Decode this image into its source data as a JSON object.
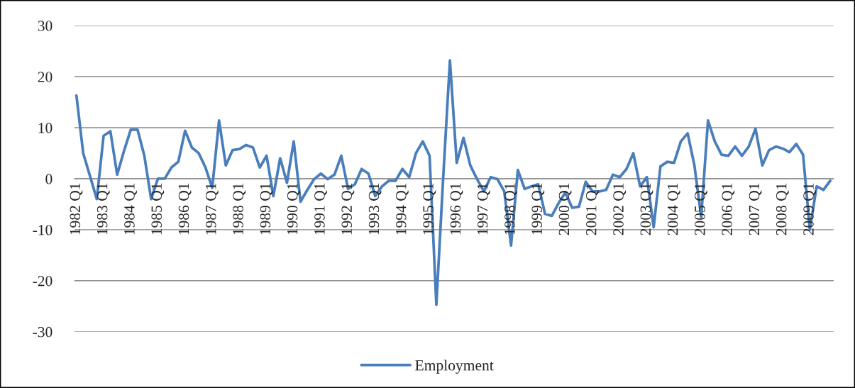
{
  "chart_data": {
    "type": "line",
    "categories": [
      "1982 Q1",
      null,
      null,
      null,
      "1983 Q1",
      null,
      null,
      null,
      "1984 Q1",
      null,
      null,
      null,
      "1985 Q1",
      null,
      null,
      null,
      "1986 Q1",
      null,
      null,
      null,
      "1987 Q1",
      null,
      null,
      null,
      "1988 Q1",
      null,
      null,
      null,
      "1989 Q1",
      null,
      null,
      null,
      "1990 Q1",
      null,
      null,
      null,
      "1991 Q1",
      null,
      null,
      null,
      "1992 Q1",
      null,
      null,
      null,
      "1993 Q1",
      null,
      null,
      null,
      "1994 Q1",
      null,
      null,
      null,
      "1995 Q1",
      null,
      null,
      null,
      "1996 Q1",
      null,
      null,
      null,
      "1997 Q1",
      null,
      null,
      null,
      "1998 Q1",
      null,
      null,
      null,
      "1999 Q1",
      null,
      null,
      null,
      "2000 Q1",
      null,
      null,
      null,
      "2001 Q1",
      null,
      null,
      null,
      "2002 Q1",
      null,
      null,
      null,
      "2003 Q1",
      null,
      null,
      null,
      "2004 Q1",
      null,
      null,
      null,
      "2005 Q1",
      null,
      null,
      null,
      "2006 Q1",
      null,
      null,
      null,
      "2007 Q1",
      null,
      null,
      null,
      "2008 Q1",
      null,
      null,
      null,
      "2009 Q1",
      null,
      null,
      null
    ],
    "series": [
      {
        "name": "Employment",
        "color": "#4a7ebb",
        "values": [
          16.3,
          5,
          0.5,
          -4,
          8.4,
          9.3,
          0.8,
          5.4,
          9.6,
          9.6,
          4.5,
          -4,
          0,
          0,
          2.2,
          3.3,
          9.4,
          6.1,
          5,
          2.2,
          -1.8,
          11.4,
          2.6,
          5.6,
          5.8,
          6.6,
          6.1,
          2.2,
          4.5,
          -3.4,
          4,
          -0.8,
          7.3,
          -4.5,
          -2.2,
          -0.1,
          1,
          -0.1,
          0.8,
          4.5,
          -2,
          -1.1,
          1.9,
          1,
          -3.4,
          -1.5,
          -0.4,
          -0.4,
          1.9,
          0.3,
          5,
          7.3,
          4.5,
          -24.7,
          0,
          23.2,
          3.1,
          8,
          2.6,
          -0.1,
          -2.5,
          0.3,
          -0.1,
          -2.5,
          -13.1,
          1.7,
          -2,
          -1.5,
          -1.1,
          -6.9,
          -7.3,
          -4.8,
          -2.7,
          -5.7,
          -5.5,
          -0.6,
          -2.5,
          -2.5,
          -2.2,
          0.8,
          0.3,
          1.9,
          5,
          -1.5,
          0.3,
          -9.5,
          2.4,
          3.3,
          3.1,
          7.3,
          8.9,
          2.6,
          -7.5,
          11.4,
          7.3,
          4.7,
          4.5,
          6.3,
          4.5,
          6.3,
          9.8,
          2.6,
          5.6,
          6.3,
          5.9,
          5.2,
          6.8,
          4.7,
          -10,
          -1.5,
          -2.2,
          -0.4
        ]
      }
    ],
    "ylim": [
      -30,
      30
    ],
    "yticks": [
      -30,
      -20,
      -10,
      0,
      10,
      20,
      30
    ],
    "grid": "y",
    "legend": "bottom",
    "line_style": "solid"
  }
}
